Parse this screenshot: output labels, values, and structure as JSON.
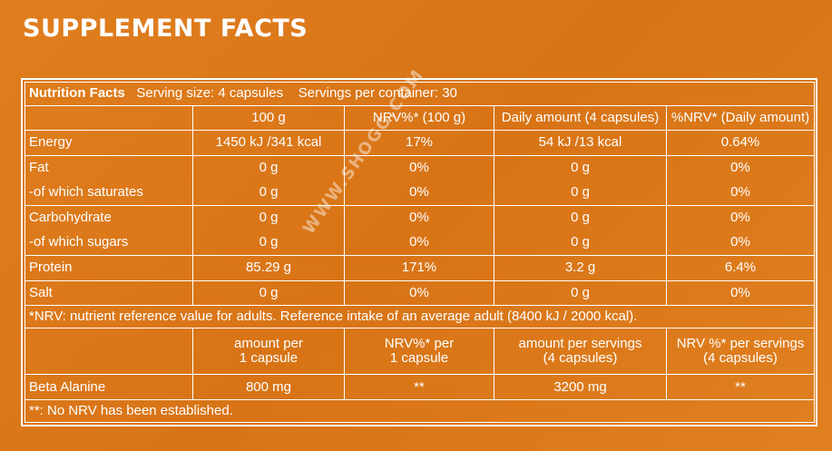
{
  "title": "SUPPLEMENT FACTS",
  "watermark": "WWW.SHOGG.COM",
  "header": {
    "nf": "Nutrition Facts",
    "serving": "Serving size: 4 capsules",
    "servings": "Servings per container: 30"
  },
  "cols": [
    "100 g",
    "NRV%* (100 g)",
    "Daily amount (4 capsules)",
    "%NRV*  (Daily amount)"
  ],
  "rows": [
    [
      "Energy",
      "1450 kJ /341 kcal",
      "17%",
      "54 kJ /13 kcal",
      "0.64%"
    ],
    [
      "Fat",
      "0 g",
      "0%",
      "0 g",
      "0%"
    ],
    [
      "-of which saturates",
      "0 g",
      "0%",
      "0 g",
      "0%"
    ],
    [
      "Carbohydrate",
      "0 g",
      "0%",
      "0 g",
      "0%"
    ],
    [
      "-of which sugars",
      "0 g",
      "0%",
      "0 g",
      "0%"
    ],
    [
      "Protein",
      "85.29 g",
      "171%",
      "3.2 g",
      "6.4%"
    ],
    [
      "Salt",
      "0 g",
      "0%",
      "0 g",
      "0%"
    ]
  ],
  "nrv_note": "*NRV: nutrient reference value for adults.  Reference intake of an average adult (8400 kJ / 2000 kcal).",
  "cols2": [
    [
      "amount per",
      "1 capsule"
    ],
    [
      "NRV%* per",
      "1 capsule"
    ],
    [
      "amount per servings",
      "(4 capsules)"
    ],
    [
      "NRV %* per servings",
      "(4 capsules)"
    ]
  ],
  "beta": [
    "Beta Alanine",
    "800 mg",
    "**",
    "3200 mg",
    "**"
  ],
  "footnote": "**: No NRV has been established."
}
